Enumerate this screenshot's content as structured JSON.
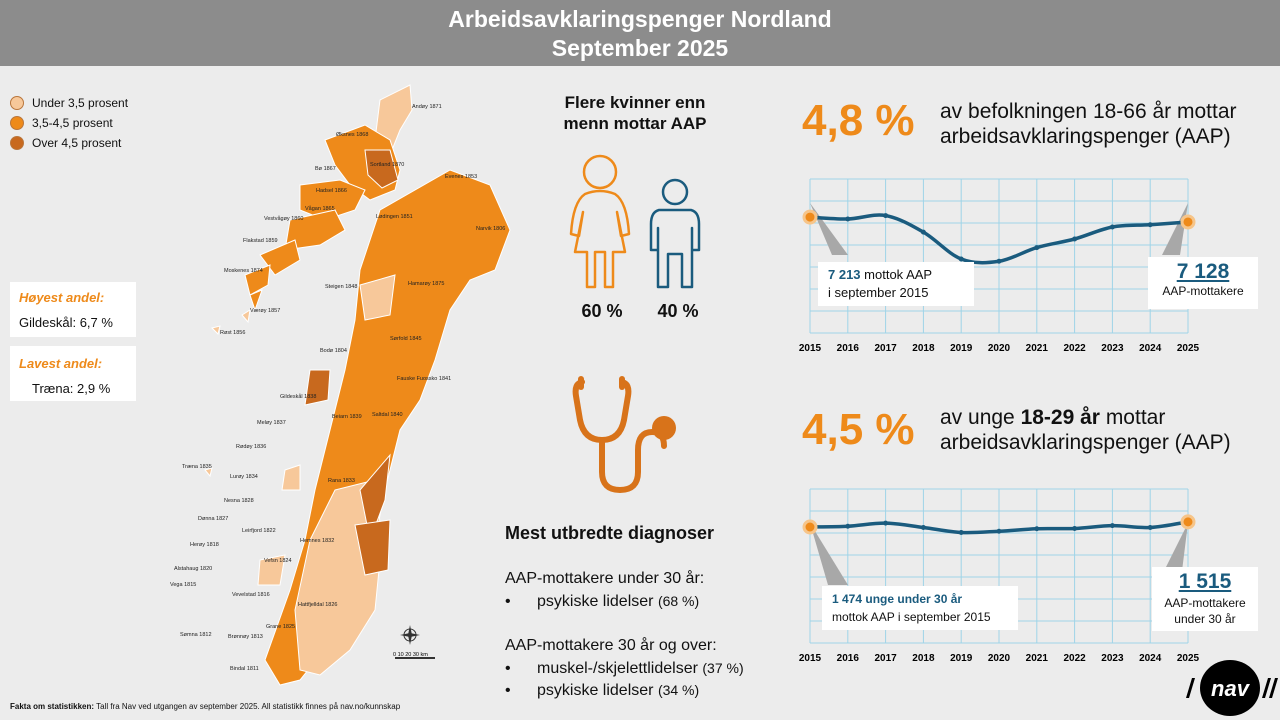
{
  "header": {
    "title_line1": "Arbeidsavklaringspenger Nordland",
    "title_line2": "September 2025"
  },
  "legend": [
    {
      "label": "Under 3,5 prosent",
      "color": "#f7c89a"
    },
    {
      "label": "3,5-4,5 prosent",
      "color": "#ee8a1a"
    },
    {
      "label": "Over 4,5 prosent",
      "color": "#c8691e"
    }
  ],
  "highest": {
    "label": "Høyest andel:",
    "value": "Gildeskål: 6,7 %"
  },
  "lowest": {
    "label": "Lavest andel:",
    "value": "Træna: 2,9 %"
  },
  "map_labels": [
    {
      "name": "Andøy",
      "code": "1871"
    },
    {
      "name": "Øksnes",
      "code": "1868"
    },
    {
      "name": "Sortland",
      "code": "1870"
    },
    {
      "name": "Bø",
      "code": "1867"
    },
    {
      "name": "Hadsel",
      "code": "1866"
    },
    {
      "name": "Evenes",
      "code": "1853"
    },
    {
      "name": "Vågan",
      "code": "1865"
    },
    {
      "name": "Vestvågøy",
      "code": "1860"
    },
    {
      "name": "Lødingen",
      "code": "1851"
    },
    {
      "name": "Narvik",
      "code": "1806"
    },
    {
      "name": "Flakstad",
      "code": "1859"
    },
    {
      "name": "Moskenes",
      "code": "1874"
    },
    {
      "name": "Steigen",
      "code": "1848"
    },
    {
      "name": "Hamarøy",
      "code": "1875"
    },
    {
      "name": "Værøy",
      "code": "1857"
    },
    {
      "name": "Røst",
      "code": "1856"
    },
    {
      "name": "Sørfold",
      "code": "1845"
    },
    {
      "name": "Bodø",
      "code": "1804"
    },
    {
      "name": "Fauske Fuossko",
      "code": "1841"
    },
    {
      "name": "Gildeskål",
      "code": "1838"
    },
    {
      "name": "Beiarn",
      "code": "1839"
    },
    {
      "name": "Saltdal",
      "code": "1840"
    },
    {
      "name": "Meløy",
      "code": "1837"
    },
    {
      "name": "Rødøy",
      "code": "1836"
    },
    {
      "name": "Træna",
      "code": "1835"
    },
    {
      "name": "Lurøy",
      "code": "1834"
    },
    {
      "name": "Rana",
      "code": "1833"
    },
    {
      "name": "Nesna",
      "code": "1828"
    },
    {
      "name": "Dønna",
      "code": "1827"
    },
    {
      "name": "Leirfjord",
      "code": "1822"
    },
    {
      "name": "Hemnes",
      "code": "1832"
    },
    {
      "name": "Herøy",
      "code": "1818"
    },
    {
      "name": "Vefsn",
      "code": "1824"
    },
    {
      "name": "Alstahaug",
      "code": "1820"
    },
    {
      "name": "Vega",
      "code": "1815"
    },
    {
      "name": "Vevelstad",
      "code": "1816"
    },
    {
      "name": "Hattfjelldal",
      "code": "1826"
    },
    {
      "name": "Grane",
      "code": "1825"
    },
    {
      "name": "Sømna",
      "code": "1812"
    },
    {
      "name": "Brønnøy",
      "code": "1813"
    },
    {
      "name": "Bindal",
      "code": "1811"
    }
  ],
  "map_scale": "0  10  20  30 km",
  "gender": {
    "title_line1": "Flere kvinner enn",
    "title_line2": "menn mottar AAP",
    "female_pct": "60 %",
    "male_pct": "40 %",
    "female_color": "#ee8a1a",
    "male_color": "#1a5b7e"
  },
  "diagnoses": {
    "title": "Mest utbredte diagnoser",
    "under30_label": "AAP-mottakere under 30 år:",
    "under30_items": [
      {
        "text": "psykiske lidelser",
        "pct": "(68 %)"
      }
    ],
    "over30_label": "AAP-mottakere 30 år og over:",
    "over30_items": [
      {
        "text": "muskel-/skjelettlidelser",
        "pct": "(37 %)"
      },
      {
        "text": "psykiske lidelser",
        "pct": "(34 %)"
      }
    ]
  },
  "stat1": {
    "pct": "4,8 %",
    "line1": "av befolkningen 18-66 år mottar",
    "line2": "arbeidsavklaringspenger (AAP)"
  },
  "stat2": {
    "pct": "4,5 %",
    "line1_pre": "av unge ",
    "line1_bold": "18-29 år",
    "line1_post": " mottar",
    "line2": "arbeidsavklaringspenger (AAP)"
  },
  "chart_data": [
    {
      "type": "line",
      "x": [
        "2015",
        "2016",
        "2017",
        "2018",
        "2019",
        "2020",
        "2021",
        "2022",
        "2023",
        "2024",
        "2025"
      ],
      "values": [
        7213,
        7180,
        7240,
        6950,
        6480,
        6440,
        6680,
        6830,
        7040,
        7080,
        7128
      ],
      "ylim": [
        6200,
        7600
      ],
      "grid": true,
      "line_color": "#1a5b7e",
      "endpoint_color": "#ee8a1a",
      "callout_start": {
        "num": "7 213",
        "line1_rest": " mottok AAP",
        "line2": "i september 2015"
      },
      "callout_end": {
        "num": "7 128",
        "label": "AAP-mottakere"
      }
    },
    {
      "type": "line",
      "x": [
        "2015",
        "2016",
        "2017",
        "2018",
        "2019",
        "2020",
        "2021",
        "2022",
        "2023",
        "2024",
        "2025"
      ],
      "values": [
        1474,
        1480,
        1505,
        1470,
        1430,
        1440,
        1460,
        1462,
        1485,
        1470,
        1515
      ],
      "ylim": [
        1250,
        1650
      ],
      "grid": true,
      "line_color": "#1a5b7e",
      "endpoint_color": "#ee8a1a",
      "callout_start": {
        "num_line": "1 474 unge under 30 år",
        "line2": "mottok AAP i september 2015"
      },
      "callout_end": {
        "num": "1 515",
        "label_line1": "AAP-mottakere",
        "label_line2": "under 30 år"
      }
    }
  ],
  "footer": {
    "bold": "Fakta om statistikken:",
    "text": " Tall fra Nav ved utgangen av september 2025. All statistikk finnes på nav.no/kunnskap"
  },
  "logo_text": "nav"
}
